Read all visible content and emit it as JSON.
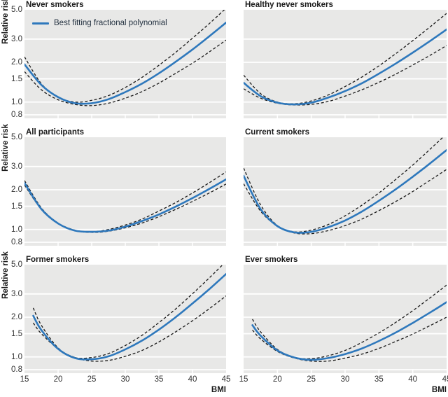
{
  "figure": {
    "description": "Six-panel figure of relative risk versus BMI by smoking status",
    "background_color": "#ffffff"
  },
  "chart_data": {
    "type": "line",
    "x_label": "BMI",
    "y_label": "Relative risk",
    "x_range": [
      15,
      45
    ],
    "y_range": [
      0.8,
      5.0
    ],
    "y_scale": "log",
    "x_ticks": [
      15,
      20,
      25,
      30,
      35,
      40,
      45
    ],
    "y_ticks": [
      "5.0",
      "3.0",
      "2.0",
      "1.5",
      "1.0",
      "0.8"
    ],
    "grid": "horizontal-white-lines",
    "legend": {
      "label": "Best fitting fractional polynomial",
      "color": "#2e78bc",
      "position": "top-left-panel"
    },
    "colors": {
      "fit_line": "#2e78bc",
      "confidence_line": "#1a1a1a",
      "panel_background": "#e8e8e7",
      "grid_line": "#ffffff"
    },
    "panels": [
      {
        "title": "Never smokers",
        "position": "row1-col1",
        "has_legend": true,
        "fit": [
          [
            15,
            1.93
          ],
          [
            17.5,
            1.35
          ],
          [
            20,
            1.09
          ],
          [
            22.5,
            0.98
          ],
          [
            25,
            0.98
          ],
          [
            27.5,
            1.05
          ],
          [
            30,
            1.19
          ],
          [
            32.5,
            1.38
          ],
          [
            35,
            1.65
          ],
          [
            37.5,
            2.02
          ],
          [
            40,
            2.5
          ],
          [
            42.5,
            3.15
          ],
          [
            45,
            4.0
          ]
        ],
        "upper_ci": [
          [
            15,
            2.2
          ],
          [
            17.5,
            1.38
          ],
          [
            20,
            1.09
          ],
          [
            22.5,
            1.0
          ],
          [
            25,
            1.03
          ],
          [
            27.5,
            1.12
          ],
          [
            30,
            1.29
          ],
          [
            32.5,
            1.54
          ],
          [
            35,
            1.9
          ],
          [
            37.5,
            2.38
          ],
          [
            40,
            3.05
          ],
          [
            42.5,
            3.93
          ],
          [
            45,
            5.15
          ]
        ],
        "lower_ci": [
          [
            15,
            1.7
          ],
          [
            17.5,
            1.24
          ],
          [
            20,
            1.04
          ],
          [
            22.5,
            0.96
          ],
          [
            25,
            0.94
          ],
          [
            27.5,
            0.98
          ],
          [
            30,
            1.07
          ],
          [
            32.5,
            1.2
          ],
          [
            35,
            1.39
          ],
          [
            37.5,
            1.65
          ],
          [
            40,
            1.97
          ],
          [
            42.5,
            2.4
          ],
          [
            45,
            2.95
          ]
        ]
      },
      {
        "title": "Healthy never smokers",
        "position": "row1-col2",
        "has_legend": false,
        "fit": [
          [
            15,
            1.4
          ],
          [
            17.5,
            1.11
          ],
          [
            20,
            0.99
          ],
          [
            22.5,
            0.96
          ],
          [
            25,
            0.99
          ],
          [
            27.5,
            1.08
          ],
          [
            30,
            1.21
          ],
          [
            32.5,
            1.39
          ],
          [
            35,
            1.64
          ],
          [
            37.5,
            1.96
          ],
          [
            40,
            2.37
          ],
          [
            42.5,
            2.89
          ],
          [
            45,
            3.55
          ]
        ],
        "upper_ci": [
          [
            15,
            1.6
          ],
          [
            17.5,
            1.16
          ],
          [
            20,
            1.0
          ],
          [
            22.5,
            0.97
          ],
          [
            25,
            1.02
          ],
          [
            27.5,
            1.13
          ],
          [
            30,
            1.31
          ],
          [
            32.5,
            1.55
          ],
          [
            35,
            1.88
          ],
          [
            37.5,
            2.33
          ],
          [
            40,
            2.92
          ],
          [
            42.5,
            3.69
          ],
          [
            45,
            4.7
          ]
        ],
        "lower_ci": [
          [
            15,
            1.26
          ],
          [
            17.5,
            1.07
          ],
          [
            20,
            0.98
          ],
          [
            22.5,
            0.95
          ],
          [
            25,
            0.96
          ],
          [
            27.5,
            1.01
          ],
          [
            30,
            1.11
          ],
          [
            32.5,
            1.24
          ],
          [
            35,
            1.41
          ],
          [
            37.5,
            1.63
          ],
          [
            40,
            1.91
          ],
          [
            42.5,
            2.25
          ],
          [
            45,
            2.68
          ]
        ]
      },
      {
        "title": "All participants",
        "position": "row2-col1",
        "has_legend": false,
        "fit": [
          [
            15,
            2.25
          ],
          [
            17.5,
            1.43
          ],
          [
            20,
            1.11
          ],
          [
            22.5,
            0.98
          ],
          [
            25,
            0.96
          ],
          [
            27.5,
            0.98
          ],
          [
            30,
            1.05
          ],
          [
            32.5,
            1.16
          ],
          [
            35,
            1.3
          ],
          [
            37.5,
            1.49
          ],
          [
            40,
            1.73
          ],
          [
            42.5,
            2.03
          ],
          [
            45,
            2.4
          ]
        ],
        "upper_ci": [
          [
            15,
            2.35
          ],
          [
            17.5,
            1.46
          ],
          [
            20,
            1.12
          ],
          [
            22.5,
            0.99
          ],
          [
            25,
            0.96
          ],
          [
            27.5,
            1.0
          ],
          [
            30,
            1.08
          ],
          [
            32.5,
            1.2
          ],
          [
            35,
            1.38
          ],
          [
            37.5,
            1.6
          ],
          [
            40,
            1.89
          ],
          [
            42.5,
            2.26
          ],
          [
            45,
            2.73
          ]
        ],
        "lower_ci": [
          [
            15,
            2.17
          ],
          [
            17.5,
            1.42
          ],
          [
            20,
            1.11
          ],
          [
            22.5,
            0.98
          ],
          [
            25,
            0.95
          ],
          [
            27.5,
            0.97
          ],
          [
            30,
            1.03
          ],
          [
            32.5,
            1.12
          ],
          [
            35,
            1.25
          ],
          [
            37.5,
            1.42
          ],
          [
            40,
            1.63
          ],
          [
            42.5,
            1.89
          ],
          [
            45,
            2.21
          ]
        ]
      },
      {
        "title": "Current smokers",
        "position": "row2-col2",
        "has_legend": false,
        "fit": [
          [
            15,
            2.55
          ],
          [
            17.5,
            1.43
          ],
          [
            20,
            1.06
          ],
          [
            22.5,
            0.95
          ],
          [
            25,
            0.96
          ],
          [
            27.5,
            1.04
          ],
          [
            30,
            1.17
          ],
          [
            32.5,
            1.37
          ],
          [
            35,
            1.65
          ],
          [
            37.5,
            2.02
          ],
          [
            40,
            2.51
          ],
          [
            42.5,
            3.15
          ],
          [
            45,
            4.0
          ]
        ],
        "upper_ci": [
          [
            15,
            2.92
          ],
          [
            17.5,
            1.54
          ],
          [
            20,
            1.07
          ],
          [
            22.5,
            0.96
          ],
          [
            25,
            0.99
          ],
          [
            27.5,
            1.09
          ],
          [
            30,
            1.27
          ],
          [
            32.5,
            1.53
          ],
          [
            35,
            1.89
          ],
          [
            37.5,
            2.4
          ],
          [
            40,
            3.08
          ],
          [
            42.5,
            4.03
          ],
          [
            45,
            5.3
          ]
        ],
        "lower_ci": [
          [
            15,
            2.22
          ],
          [
            17.5,
            1.38
          ],
          [
            20,
            1.06
          ],
          [
            22.5,
            0.94
          ],
          [
            25,
            0.93
          ],
          [
            27.5,
            0.98
          ],
          [
            30,
            1.07
          ],
          [
            32.5,
            1.2
          ],
          [
            35,
            1.39
          ],
          [
            37.5,
            1.63
          ],
          [
            40,
            1.94
          ],
          [
            42.5,
            2.35
          ],
          [
            45,
            2.85
          ]
        ]
      },
      {
        "title": "Former smokers",
        "position": "row3-col1",
        "has_legend": false,
        "fit": [
          [
            16.3,
            2.05
          ],
          [
            17.5,
            1.6
          ],
          [
            20,
            1.15
          ],
          [
            22.5,
            0.98
          ],
          [
            25,
            0.96
          ],
          [
            27.5,
            1.01
          ],
          [
            30,
            1.14
          ],
          [
            32.5,
            1.33
          ],
          [
            35,
            1.61
          ],
          [
            37.5,
            2.0
          ],
          [
            40,
            2.54
          ],
          [
            42.5,
            3.26
          ],
          [
            45,
            4.25
          ]
        ],
        "upper_ci": [
          [
            16.3,
            2.35
          ],
          [
            17.5,
            1.74
          ],
          [
            20,
            1.17
          ],
          [
            22.5,
            0.99
          ],
          [
            25,
            0.99
          ],
          [
            27.5,
            1.06
          ],
          [
            30,
            1.22
          ],
          [
            32.5,
            1.46
          ],
          [
            35,
            1.82
          ],
          [
            37.5,
            2.31
          ],
          [
            40,
            3.01
          ],
          [
            42.5,
            3.97
          ],
          [
            45,
            5.3
          ]
        ],
        "lower_ci": [
          [
            16.3,
            1.81
          ],
          [
            17.5,
            1.5
          ],
          [
            20,
            1.15
          ],
          [
            22.5,
            0.99
          ],
          [
            25,
            0.93
          ],
          [
            27.5,
            0.94
          ],
          [
            30,
            1.01
          ],
          [
            32.5,
            1.12
          ],
          [
            35,
            1.3
          ],
          [
            37.5,
            1.55
          ],
          [
            40,
            1.88
          ],
          [
            42.5,
            2.32
          ],
          [
            45,
            2.9
          ]
        ]
      },
      {
        "title": "Ever smokers",
        "position": "row3-col2",
        "has_legend": false,
        "fit": [
          [
            16.3,
            1.74
          ],
          [
            17.5,
            1.45
          ],
          [
            20,
            1.12
          ],
          [
            22.5,
            0.99
          ],
          [
            25,
            0.95
          ],
          [
            27.5,
            0.98
          ],
          [
            30,
            1.05
          ],
          [
            32.5,
            1.16
          ],
          [
            35,
            1.32
          ],
          [
            37.5,
            1.53
          ],
          [
            40,
            1.81
          ],
          [
            42.5,
            2.16
          ],
          [
            45,
            2.6
          ]
        ],
        "upper_ci": [
          [
            16.3,
            1.93
          ],
          [
            17.5,
            1.55
          ],
          [
            20,
            1.14
          ],
          [
            22.5,
            0.99
          ],
          [
            25,
            0.97
          ],
          [
            27.5,
            1.02
          ],
          [
            30,
            1.12
          ],
          [
            32.5,
            1.29
          ],
          [
            35,
            1.52
          ],
          [
            37.5,
            1.83
          ],
          [
            40,
            2.24
          ],
          [
            42.5,
            2.79
          ],
          [
            45,
            3.5
          ]
        ],
        "lower_ci": [
          [
            16.3,
            1.6
          ],
          [
            17.5,
            1.37
          ],
          [
            20,
            1.1
          ],
          [
            22.5,
            0.98
          ],
          [
            25,
            0.93
          ],
          [
            27.5,
            0.93
          ],
          [
            30,
            0.98
          ],
          [
            32.5,
            1.05
          ],
          [
            35,
            1.16
          ],
          [
            37.5,
            1.31
          ],
          [
            40,
            1.49
          ],
          [
            42.5,
            1.72
          ],
          [
            45,
            2.0
          ]
        ]
      }
    ]
  }
}
